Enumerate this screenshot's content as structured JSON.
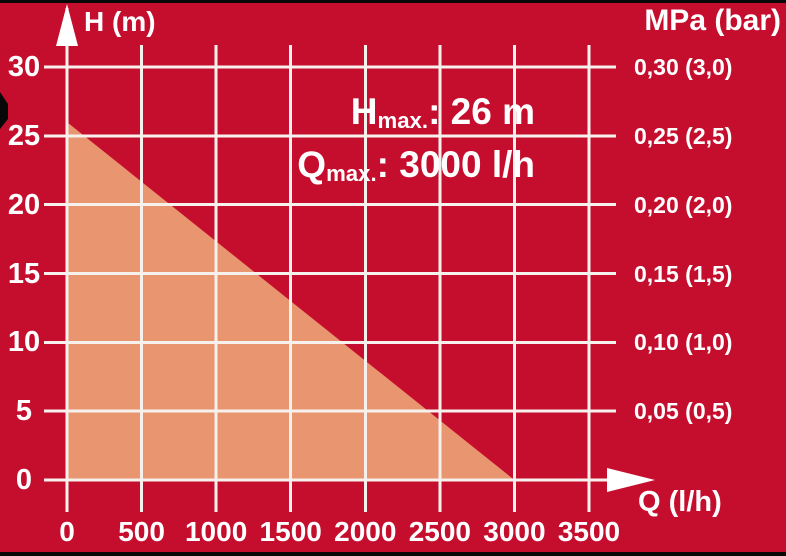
{
  "colors": {
    "background": "#C50E2E",
    "area_fill": "#E9956F",
    "grid": "#F7F1ED",
    "text": "#FFFFFF",
    "border": "#080808"
  },
  "chart_data": {
    "type": "area",
    "title": "",
    "grid": true,
    "legend": false,
    "x_axis": {
      "label": "Q (l/h)",
      "range": [
        0,
        3500
      ],
      "ticks": [
        0,
        500,
        1000,
        1500,
        2000,
        2500,
        3000,
        3500
      ]
    },
    "y_axis_left": {
      "label": "H (m)",
      "range": [
        0,
        30
      ],
      "ticks": [
        0,
        5,
        10,
        15,
        20,
        25,
        30
      ]
    },
    "y_axis_right": {
      "label": "MPa (bar)",
      "ticks": [
        {
          "label": "0,30 (3,0)",
          "at_h": 30
        },
        {
          "label": "0,25 (2,5)",
          "at_h": 25
        },
        {
          "label": "0,20 (2,0)",
          "at_h": 20
        },
        {
          "label": "0,15 (1,5)",
          "at_h": 15
        },
        {
          "label": "0,10 (1,0)",
          "at_h": 10
        },
        {
          "label": "0,05 (0,5)",
          "at_h": 5
        }
      ]
    },
    "series": [
      {
        "name": "pump-head-capacity-curve",
        "points": [
          [
            0,
            26
          ],
          [
            3000,
            0
          ]
        ]
      }
    ],
    "annotations": [
      {
        "name": "h-max",
        "main": "H",
        "sub": "max.",
        "rest": ": 26 m"
      },
      {
        "name": "q-max",
        "main": "Q",
        "sub": "max.",
        "rest": ": 3000 l/h"
      }
    ]
  }
}
